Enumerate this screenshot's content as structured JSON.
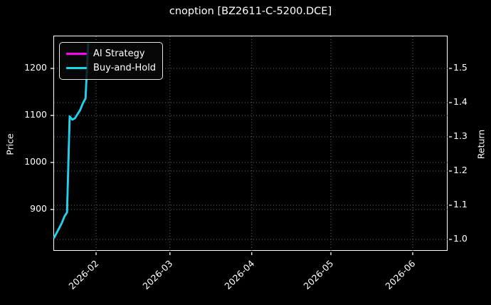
{
  "title": "cnoption [BZ2611-C-5200.DCE]",
  "colors": {
    "background": "#000000",
    "text": "#ffffff",
    "axis_spine": "#ffffff",
    "grid": "#6b6b6b",
    "ai_strategy": "#ff00ff",
    "buy_and_hold": "#17d8e6"
  },
  "legend": {
    "items": [
      {
        "label": "AI Strategy",
        "color": "#ff00ff"
      },
      {
        "label": "Buy-and-Hold",
        "color": "#17d8e6"
      }
    ]
  },
  "axes": {
    "left": {
      "label": "Price",
      "ticks": [
        "900",
        "1000",
        "1100",
        "1200"
      ]
    },
    "right": {
      "label": "Return",
      "ticks": [
        "1.0",
        "1.1",
        "1.2",
        "1.3",
        "1.4",
        "1.5"
      ]
    },
    "x": {
      "ticks": [
        "2026-02",
        "2026-03",
        "2026-04",
        "2026-05",
        "2026-06"
      ]
    }
  },
  "chart_data": {
    "type": "line",
    "title": "cnoption [BZ2611-C-5200.DCE]",
    "xlabel": "",
    "ylabel_left": "Price",
    "ylabel_right": "Return",
    "x_range": [
      "2026-01-16",
      "2026-06-14"
    ],
    "left_ylim": [
      810,
      1275
    ],
    "right_ylim": [
      0.957,
      1.595
    ],
    "grid": "dotted",
    "legend_position": "upper left",
    "series": [
      {
        "name": "AI Strategy",
        "color": "#ff00ff",
        "axis": "left",
        "note": "completely hidden beneath Buy-and-Hold line in the screenshot",
        "points": [
          [
            "2026-01-16",
            839
          ],
          [
            "2026-01-19",
            871
          ],
          [
            "2026-01-20",
            885
          ],
          [
            "2026-01-21",
            894
          ],
          [
            "2026-01-22",
            1098
          ],
          [
            "2026-01-23",
            1091
          ],
          [
            "2026-01-24",
            1094
          ],
          [
            "2026-01-26",
            1112
          ],
          [
            "2026-01-27",
            1126
          ],
          [
            "2026-01-28",
            1136
          ],
          [
            "2026-01-29",
            1253
          ]
        ]
      },
      {
        "name": "Buy-and-Hold",
        "color": "#17d8e6",
        "axis": "left",
        "points": [
          [
            "2026-01-16",
            839
          ],
          [
            "2026-01-19",
            871
          ],
          [
            "2026-01-20",
            885
          ],
          [
            "2026-01-21",
            894
          ],
          [
            "2026-01-22",
            1098
          ],
          [
            "2026-01-23",
            1091
          ],
          [
            "2026-01-24",
            1094
          ],
          [
            "2026-01-26",
            1112
          ],
          [
            "2026-01-27",
            1126
          ],
          [
            "2026-01-28",
            1136
          ],
          [
            "2026-01-29",
            1253
          ]
        ]
      }
    ]
  }
}
